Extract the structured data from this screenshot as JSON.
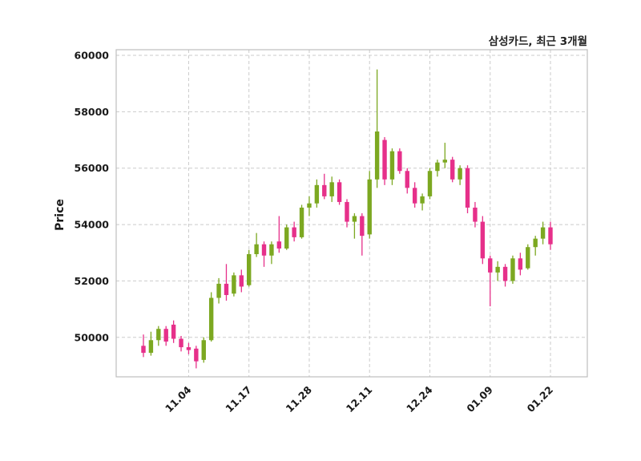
{
  "header": {
    "title": "삼성카드, 최근 3개월"
  },
  "colors": {
    "up": "#7ca821",
    "down": "#e6308a",
    "grid": "#cbcbcb",
    "frame": "#bdbdbd",
    "tick_text": "#1a1a1a",
    "background": "#ffffff"
  },
  "chart_data": {
    "type": "candlestick",
    "title": "삼성카드, 최근 3개월",
    "ylabel": "Price",
    "xlabel": "",
    "ylim": [
      48600,
      60200
    ],
    "yticks": [
      50000,
      52000,
      54000,
      56000,
      58000,
      60000
    ],
    "xticks": [
      {
        "index": 6,
        "label": "11.04"
      },
      {
        "index": 14,
        "label": "11.17"
      },
      {
        "index": 22,
        "label": "11.28"
      },
      {
        "index": 30,
        "label": "12.11"
      },
      {
        "index": 38,
        "label": "12.24"
      },
      {
        "index": 46,
        "label": "01.09"
      },
      {
        "index": 54,
        "label": "01.22"
      }
    ],
    "grid": "dashed",
    "legend": "none",
    "up_color": "#7ca821",
    "down_color": "#e6308a",
    "candle_format": [
      "open",
      "high",
      "low",
      "close"
    ],
    "candles": [
      [
        49700,
        50100,
        49300,
        49450
      ],
      [
        49450,
        50200,
        49350,
        49900
      ],
      [
        49900,
        50400,
        49700,
        50300
      ],
      [
        50300,
        50400,
        49700,
        49850
      ],
      [
        50450,
        50600,
        49800,
        49950
      ],
      [
        49950,
        50050,
        49500,
        49650
      ],
      [
        49650,
        49800,
        49400,
        49550
      ],
      [
        49600,
        49700,
        48900,
        49150
      ],
      [
        49200,
        50000,
        49100,
        49900
      ],
      [
        49900,
        51600,
        49850,
        51400
      ],
      [
        51400,
        52100,
        51200,
        51900
      ],
      [
        51900,
        52600,
        51300,
        51500
      ],
      [
        51550,
        52300,
        51450,
        52200
      ],
      [
        52200,
        52400,
        51600,
        51800
      ],
      [
        51850,
        53100,
        51800,
        52950
      ],
      [
        52950,
        53700,
        52850,
        53300
      ],
      [
        53300,
        53400,
        52500,
        52900
      ],
      [
        52900,
        53400,
        52600,
        53300
      ],
      [
        53400,
        54300,
        53000,
        53150
      ],
      [
        53150,
        54000,
        53100,
        53900
      ],
      [
        53900,
        54100,
        53400,
        53550
      ],
      [
        53550,
        54700,
        53500,
        54600
      ],
      [
        54600,
        55000,
        54300,
        54750
      ],
      [
        54750,
        55600,
        54600,
        55400
      ],
      [
        55400,
        55800,
        54900,
        55000
      ],
      [
        55000,
        55700,
        54800,
        55500
      ],
      [
        55500,
        55600,
        54700,
        54800
      ],
      [
        54800,
        54900,
        53900,
        54100
      ],
      [
        54100,
        54400,
        53500,
        54300
      ],
      [
        54300,
        54400,
        52900,
        53600
      ],
      [
        53650,
        55900,
        53500,
        55600
      ],
      [
        55600,
        59500,
        55300,
        57300
      ],
      [
        57000,
        57100,
        55400,
        55600
      ],
      [
        55600,
        56700,
        55400,
        56600
      ],
      [
        56600,
        56700,
        55800,
        55900
      ],
      [
        55900,
        56000,
        55100,
        55300
      ],
      [
        55300,
        55500,
        54600,
        54750
      ],
      [
        54750,
        55100,
        54500,
        55000
      ],
      [
        55000,
        56000,
        54900,
        55900
      ],
      [
        55900,
        56300,
        55700,
        56200
      ],
      [
        56200,
        56900,
        56000,
        56300
      ],
      [
        56300,
        56400,
        55500,
        55600
      ],
      [
        55600,
        56100,
        55400,
        56000
      ],
      [
        56000,
        56100,
        54400,
        54600
      ],
      [
        54600,
        54800,
        53900,
        54100
      ],
      [
        54100,
        54300,
        52600,
        52800
      ],
      [
        52800,
        52900,
        51100,
        52300
      ],
      [
        52300,
        52700,
        52000,
        52500
      ],
      [
        52500,
        52600,
        51800,
        52000
      ],
      [
        52000,
        52900,
        51900,
        52800
      ],
      [
        52800,
        53000,
        52200,
        52400
      ],
      [
        52450,
        53300,
        52400,
        53200
      ],
      [
        53200,
        53600,
        52900,
        53500
      ],
      [
        53500,
        54100,
        53300,
        53900
      ],
      [
        53900,
        54100,
        53100,
        53300
      ]
    ]
  }
}
